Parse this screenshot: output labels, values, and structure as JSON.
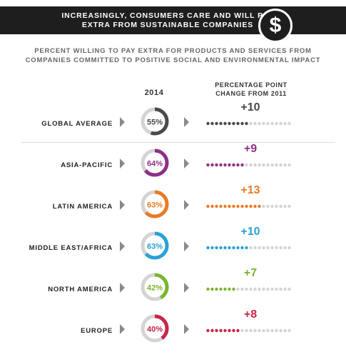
{
  "banner": {
    "line1": "INCREASINGLY, CONSUMERS CARE AND WILL PAY",
    "line2": "EXTRA FROM SUSTAINABLE COMPANIES",
    "symbol": "$"
  },
  "subtitle": {
    "line1": "PERCENT WILLING TO PAY EXTRA FOR PRODUCTS AND SERVICES FROM",
    "line2": "COMPANIES COMMITTED TO POSITIVE SOCIAL AND ENVIRONMENTAL IMPACT"
  },
  "columns": {
    "year": "2014",
    "change_line1": "PERCENTAGE POINT",
    "change_line2": "CHANGE FROM 2011"
  },
  "chart_data": {
    "type": "table",
    "dot_scale_max": 20,
    "rows": [
      {
        "region": "GLOBAL AVERAGE",
        "pct": 55,
        "pct_label": "55%",
        "change": 10,
        "change_label": "+10",
        "color": "#4a4a4a"
      },
      {
        "region": "ASIA-PACIFIC",
        "pct": 64,
        "pct_label": "64%",
        "change": 9,
        "change_label": "+9",
        "color": "#8e2f86"
      },
      {
        "region": "LATIN AMERICA",
        "pct": 63,
        "pct_label": "63%",
        "change": 13,
        "change_label": "+13",
        "color": "#ea7a26"
      },
      {
        "region": "MIDDLE EAST/AFRICA",
        "pct": 63,
        "pct_label": "63%",
        "change": 10,
        "change_label": "+10",
        "color": "#2aa0d8"
      },
      {
        "region": "NORTH AMERICA",
        "pct": 42,
        "pct_label": "42%",
        "change": 7,
        "change_label": "+7",
        "color": "#7ab52f"
      },
      {
        "region": "EUROPE",
        "pct": 40,
        "pct_label": "40%",
        "change": 8,
        "change_label": "+8",
        "color": "#c8254a"
      }
    ],
    "track_color": "#d4d4d4"
  }
}
